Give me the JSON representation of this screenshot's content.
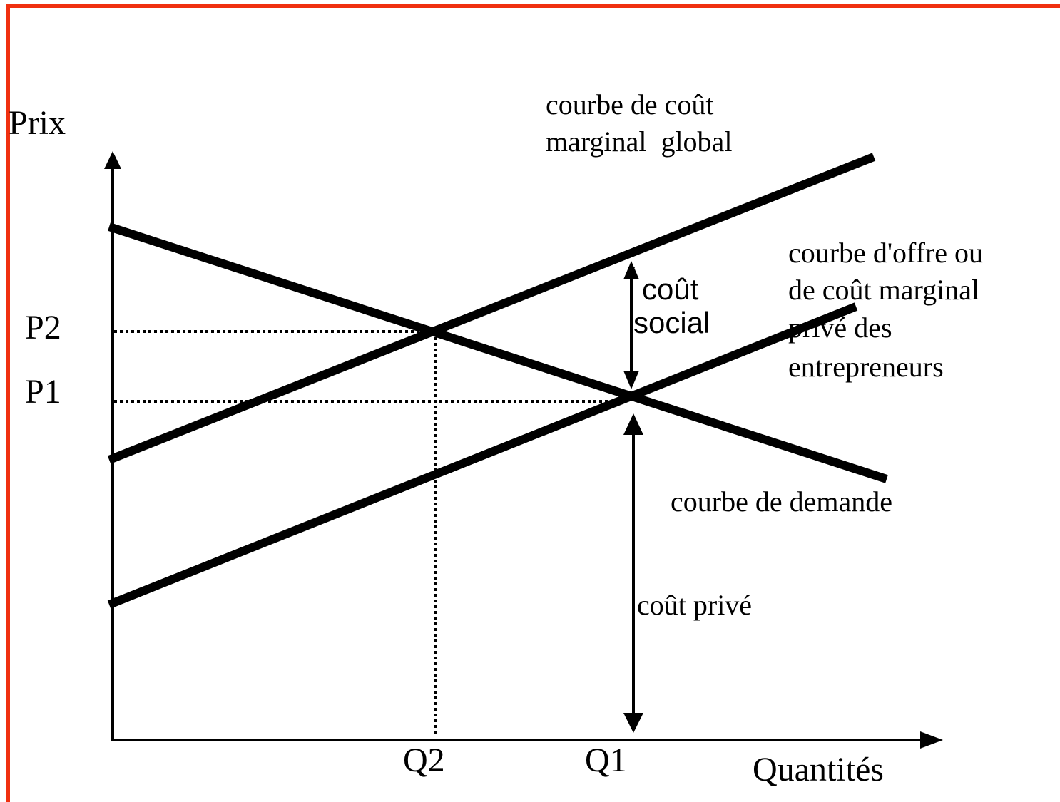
{
  "axes": {
    "y_label": "Prix",
    "x_label": "Quantités"
  },
  "ticks": {
    "p2": "P2",
    "p1": "P1",
    "q2": "Q2",
    "q1": "Q1"
  },
  "curves": {
    "global": [
      "courbe de coût",
      "marginal  global"
    ],
    "supply": [
      "courbe d'offre ou",
      "de coût marginal",
      "privé des",
      "entrepreneurs"
    ],
    "demand": [
      "courbe de demande"
    ]
  },
  "annotations": {
    "social_cost": [
      "coût",
      "social"
    ],
    "private_cost": [
      "coût privé"
    ]
  }
}
